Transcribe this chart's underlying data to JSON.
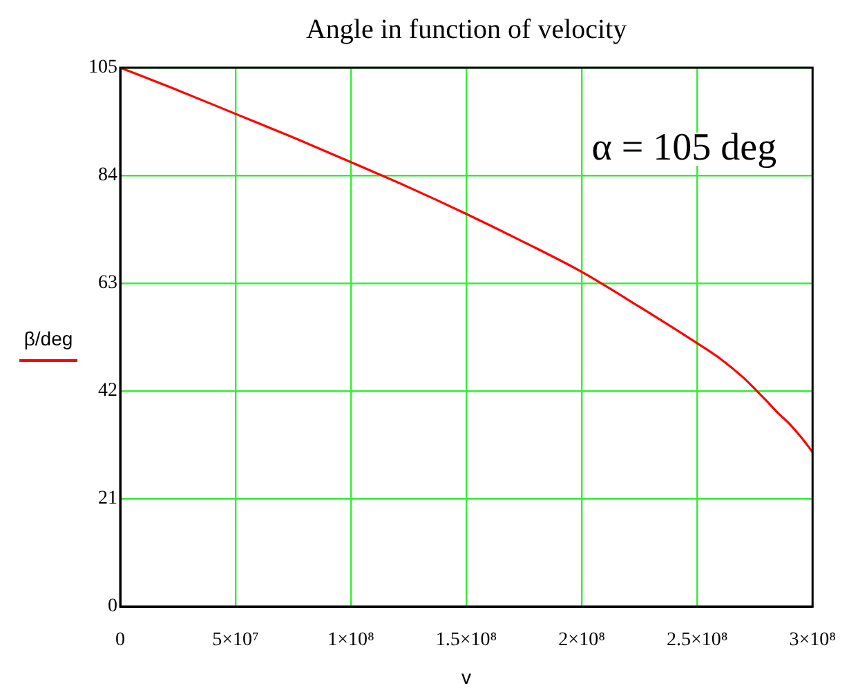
{
  "chart_data": {
    "type": "line",
    "title": "Angle in function of velocity",
    "xlabel": "v",
    "annotations": [
      "α = 105 deg"
    ],
    "x": [
      0,
      25000000.0,
      50000000.0,
      75000000.0,
      100000000.0,
      125000000.0,
      150000000.0,
      175000000.0,
      200000000.0,
      225000000.0,
      250000000.0,
      260000000.0,
      270000000.0,
      275000000.0,
      280000000.0,
      285000000.0,
      290000000.0,
      295000000.0,
      300000000.0
    ],
    "series": [
      {
        "name": "β/deg",
        "color": "#ff0000",
        "values": [
          105,
          100.6,
          96,
          91.4,
          86.6,
          81.7,
          76.5,
          71,
          65.2,
          58.4,
          51.3,
          48.3,
          44.6,
          42.4,
          40.1,
          37.7,
          35.6,
          33,
          30.1
        ]
      }
    ],
    "xlim": [
      0,
      300000000.0
    ],
    "xticks": [
      0,
      {
        "value": 50000000.0,
        "label": "5×10⁷"
      },
      {
        "value": 100000000.0,
        "label": "1×10⁸"
      },
      {
        "value": 150000000.0,
        "label": "1.5×10⁸"
      },
      {
        "value": 200000000.0,
        "label": "2×10⁸"
      },
      {
        "value": 250000000.0,
        "label": "2.5×10⁸"
      },
      {
        "value": 300000000.0,
        "label": "3×10⁸"
      }
    ],
    "ylim": [
      0,
      105
    ],
    "yticks": [
      0,
      21,
      42,
      63,
      84,
      105
    ],
    "grid": true,
    "legend": "left"
  }
}
